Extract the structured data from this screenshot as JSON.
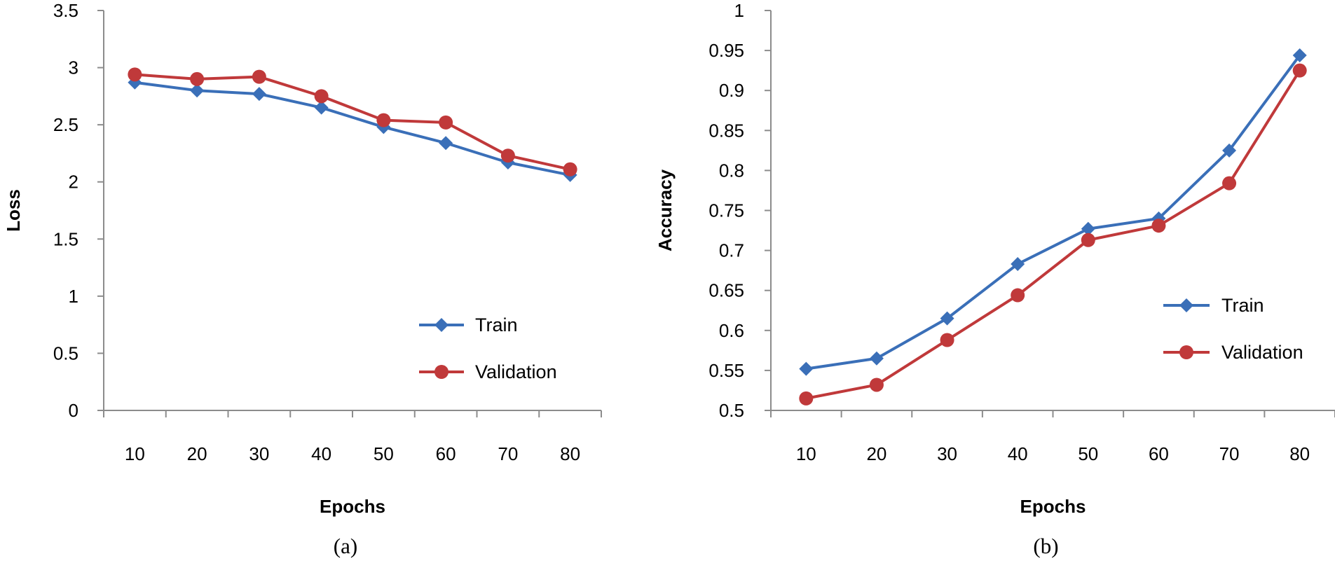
{
  "chart_data": [
    {
      "type": "line",
      "panel_label": "(a)",
      "xlabel": "Epochs",
      "ylabel": "Loss",
      "categories": [
        "10",
        "20",
        "30",
        "40",
        "50",
        "60",
        "70",
        "80"
      ],
      "ylim": [
        0,
        3.5
      ],
      "yticks": [
        "0",
        "0.5",
        "1",
        "1.5",
        "2",
        "2.5",
        "3",
        "3.5"
      ],
      "grid": false,
      "legend_position": "lower-right",
      "series": [
        {
          "name": "Train",
          "color": "#3a6fb8",
          "marker": "diamond",
          "values": [
            2.87,
            2.8,
            2.77,
            2.65,
            2.48,
            2.34,
            2.17,
            2.06
          ]
        },
        {
          "name": "Validation",
          "color": "#c0393a",
          "marker": "circle",
          "values": [
            2.94,
            2.9,
            2.92,
            2.75,
            2.54,
            2.52,
            2.23,
            2.11
          ]
        }
      ]
    },
    {
      "type": "line",
      "panel_label": "(b)",
      "xlabel": "Epochs",
      "ylabel": "Accuracy",
      "categories": [
        "10",
        "20",
        "30",
        "40",
        "50",
        "60",
        "70",
        "80"
      ],
      "ylim": [
        0.5,
        1
      ],
      "yticks": [
        "0.5",
        "0.55",
        "0.6",
        "0.65",
        "0.7",
        "0.75",
        "0.8",
        "0.85",
        "0.9",
        "0.95",
        "1"
      ],
      "grid": false,
      "legend_position": "lower-right",
      "series": [
        {
          "name": "Train",
          "color": "#3a6fb8",
          "marker": "diamond",
          "values": [
            0.552,
            0.565,
            0.615,
            0.683,
            0.727,
            0.74,
            0.825,
            0.944
          ]
        },
        {
          "name": "Validation",
          "color": "#c0393a",
          "marker": "circle",
          "values": [
            0.515,
            0.532,
            0.588,
            0.644,
            0.713,
            0.731,
            0.784,
            0.925
          ]
        }
      ]
    }
  ]
}
